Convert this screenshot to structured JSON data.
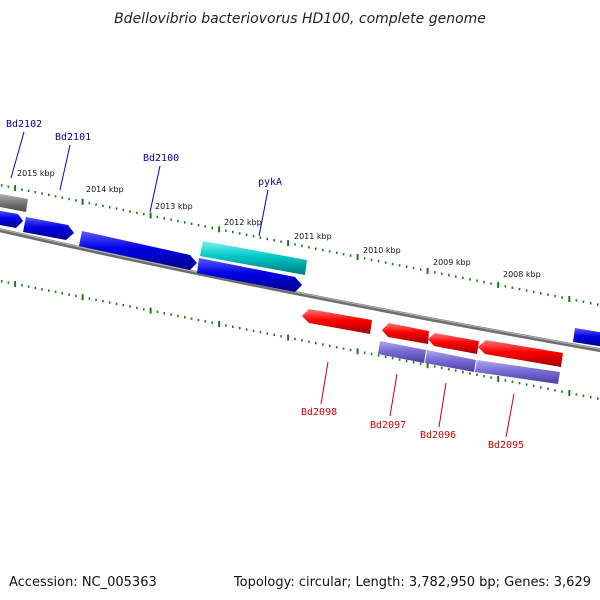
{
  "title": "Bdellovibrio bacteriovorus HD100, complete genome",
  "footer": {
    "accession": "Accession: NC_005363",
    "summary": "Topology: circular; Length: 3,782,950 bp; Genes: 3,629"
  },
  "colors": {
    "backbone": "#7a7a7a",
    "tick": "#1a7a1a",
    "forward_gene": "#0000e6",
    "highlight_gene": "#00c8c8",
    "reverse_gene": "#ff0000",
    "reverse_track2_gene": "#7a6cd4",
    "label_blue": "#0000aa",
    "label_red": "#cc0000"
  },
  "kbp_ticks": [
    "2015 kbp",
    "2014 kbp",
    "2013 kbp",
    "2012 kbp",
    "2011 kbp",
    "2010 kbp",
    "2009 kbp",
    "2008 kbp"
  ],
  "gene_labels": [
    {
      "name": "Bd2102",
      "color": "label_blue"
    },
    {
      "name": "Bd2101",
      "color": "label_blue"
    },
    {
      "name": "Bd2100",
      "color": "label_blue"
    },
    {
      "name": "pykA",
      "color": "label_blue"
    },
    {
      "name": "Bd2098",
      "color": "label_red"
    },
    {
      "name": "Bd2097",
      "color": "label_red"
    },
    {
      "name": "Bd2096",
      "color": "label_red"
    },
    {
      "name": "Bd2095",
      "color": "label_red"
    }
  ]
}
